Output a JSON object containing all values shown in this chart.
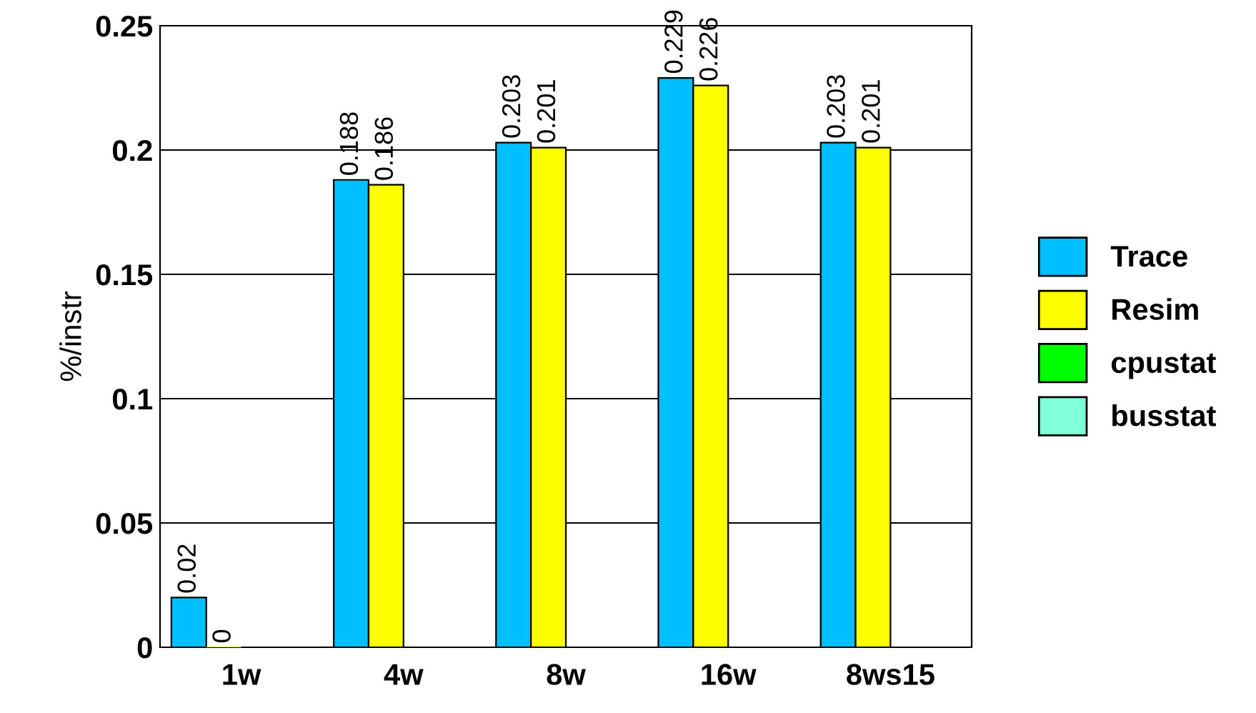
{
  "chart_data": {
    "type": "bar",
    "ylabel": "%/instr",
    "categories": [
      "1w",
      "4w",
      "8w",
      "16w",
      "8ws15"
    ],
    "series": [
      {
        "name": "Trace",
        "color": "#00bfff",
        "values": [
          0.02,
          0.188,
          0.203,
          0.229,
          0.203
        ]
      },
      {
        "name": "Resim",
        "color": "#ffff00",
        "values": [
          0,
          0.186,
          0.201,
          0.226,
          0.201
        ]
      },
      {
        "name": "cpustat",
        "color": "#00ff00",
        "values": [
          null,
          null,
          null,
          null,
          null
        ]
      },
      {
        "name": "busstat",
        "color": "#80ffd9",
        "values": [
          null,
          null,
          null,
          null,
          null
        ]
      }
    ],
    "ylim": [
      0,
      0.25
    ],
    "yticks": [
      0,
      0.05,
      0.1,
      0.15,
      0.2,
      0.25
    ],
    "grid": "y",
    "legend": "right",
    "data_labels": true
  }
}
